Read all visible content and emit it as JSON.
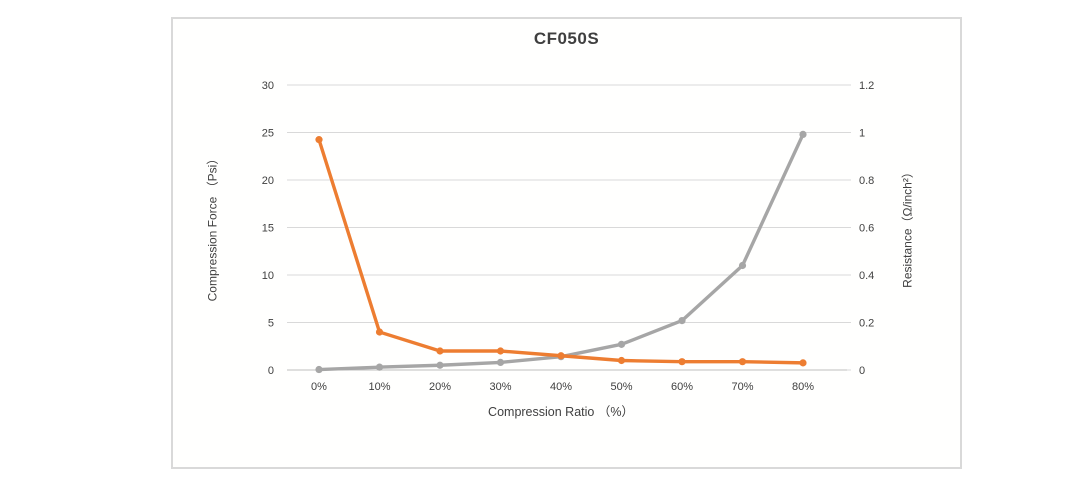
{
  "chart_data": {
    "type": "line",
    "title": "CF050S",
    "categories": [
      "0%",
      "10%",
      "20%",
      "30%",
      "40%",
      "50%",
      "60%",
      "70%",
      "80%"
    ],
    "series": [
      {
        "name": "Compression Force (Psi)",
        "axis": "left",
        "color": "#a6a6a6",
        "values": [
          0.05,
          0.3,
          0.5,
          0.8,
          1.4,
          2.7,
          5.2,
          11,
          24.8
        ]
      },
      {
        "name": "Resistance (Ω/inch²)",
        "axis": "right",
        "color": "#ed7d31",
        "values": [
          0.97,
          0.16,
          0.08,
          0.08,
          0.06,
          0.04,
          0.035,
          0.035,
          0.03
        ]
      }
    ],
    "x_axis": {
      "label": "Compression Ratio （%）"
    },
    "left_axis": {
      "label": "Compression Force （Psi）",
      "min": 0,
      "max": 30,
      "ticks": [
        "0",
        "5",
        "10",
        "15",
        "20",
        "25",
        "30"
      ]
    },
    "right_axis": {
      "label": "Resistance（Ω/inch²）",
      "min": 0,
      "max": 1.2,
      "ticks": [
        "0",
        "0.2",
        "0.4",
        "0.6",
        "0.8",
        "1",
        "1.2"
      ]
    },
    "grid": true,
    "legend": "none",
    "colors": {
      "gridline": "#d9d9d9",
      "axis_line": "#bfbfbf",
      "axis_text": "#404040",
      "panel_border": "#d9d9d9",
      "background": "#ffffff"
    }
  }
}
